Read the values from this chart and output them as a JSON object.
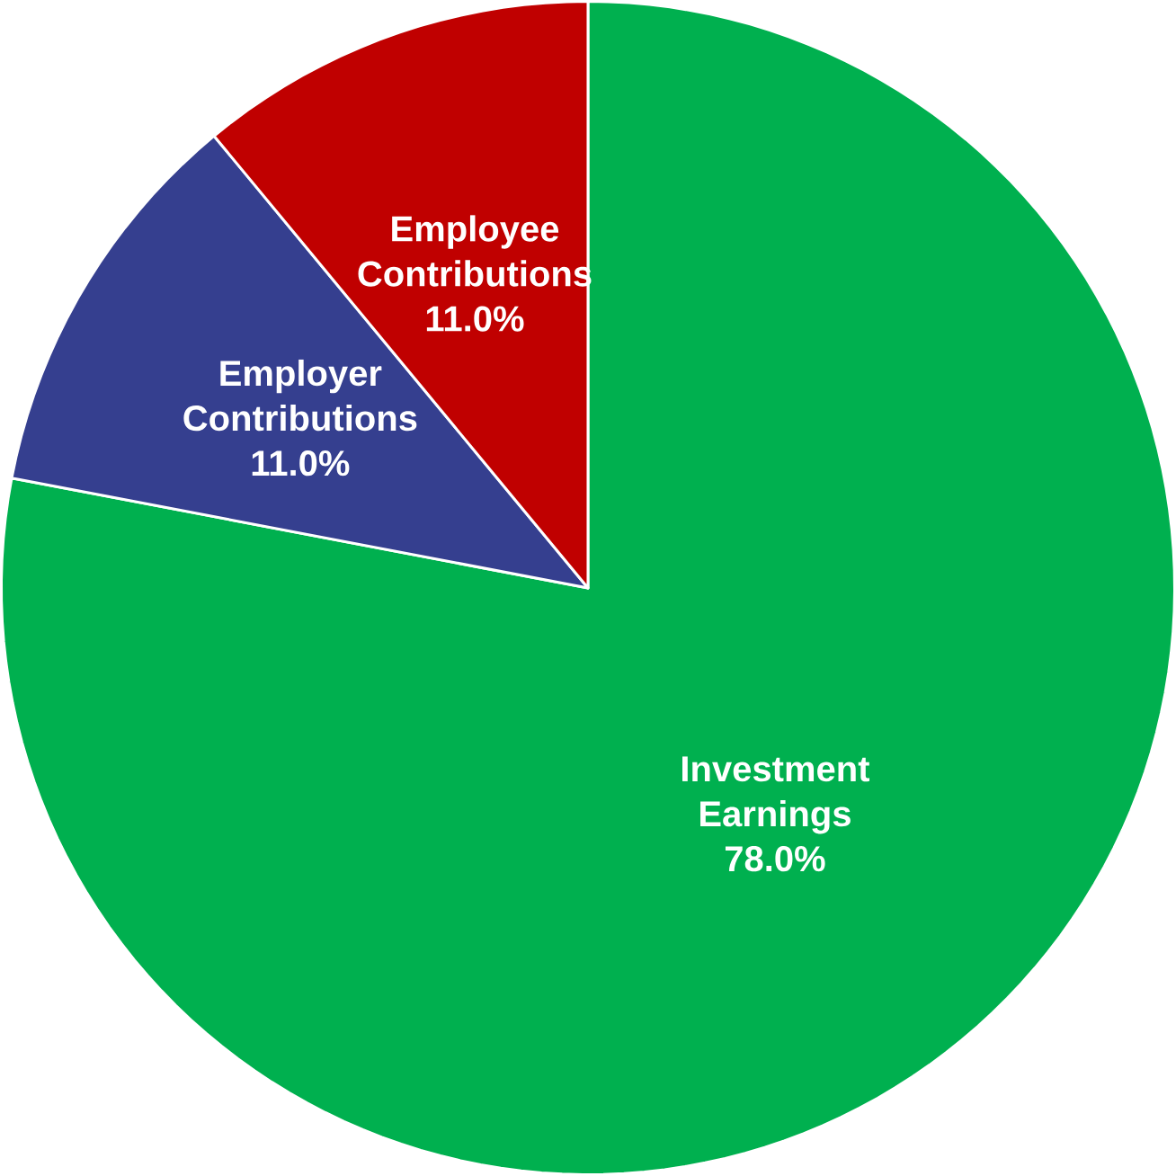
{
  "chart_data": {
    "type": "pie",
    "categories": [
      "Investment Earnings",
      "Employer Contributions",
      "Employee Contributions"
    ],
    "values": [
      78,
      11,
      11
    ],
    "colors": [
      "#00b04f",
      "#353f8f",
      "#c00000"
    ],
    "value_labels": [
      "78.0%",
      "11.0%",
      "11.0%"
    ]
  }
}
